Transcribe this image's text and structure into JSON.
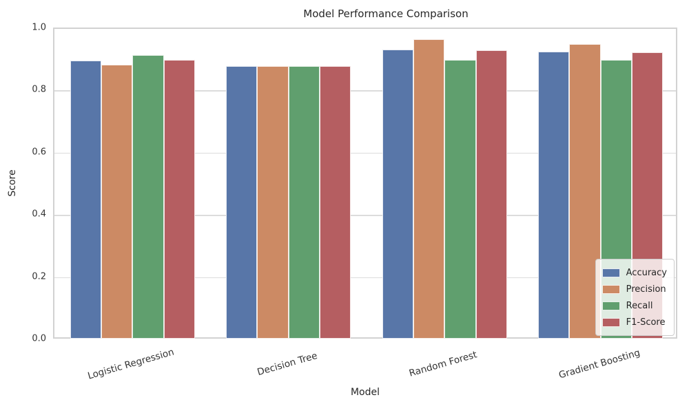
{
  "chart_data": {
    "type": "bar",
    "title": "Model Performance Comparison",
    "xlabel": "Model",
    "ylabel": "Score",
    "categories": [
      "Logistic Regression",
      "Decision Tree",
      "Random Forest",
      "Gradient Boosting"
    ],
    "series": [
      {
        "name": "Accuracy",
        "color": "#5876a8",
        "values": [
          0.898,
          0.881,
          0.933,
          0.927
        ]
      },
      {
        "name": "Precision",
        "color": "#cc8a64",
        "values": [
          0.885,
          0.881,
          0.967,
          0.951
        ]
      },
      {
        "name": "Recall",
        "color": "#609f6e",
        "values": [
          0.916,
          0.881,
          0.901,
          0.901
        ]
      },
      {
        "name": "F1-Score",
        "color": "#b55e61",
        "values": [
          0.9,
          0.881,
          0.932,
          0.925
        ]
      }
    ],
    "ylim": [
      0.0,
      1.0
    ],
    "yticks": [
      0.0,
      0.2,
      0.4,
      0.6,
      0.8,
      1.0
    ],
    "grid": true,
    "legend_position": "lower right",
    "bar_group_width_fraction": 0.8
  }
}
